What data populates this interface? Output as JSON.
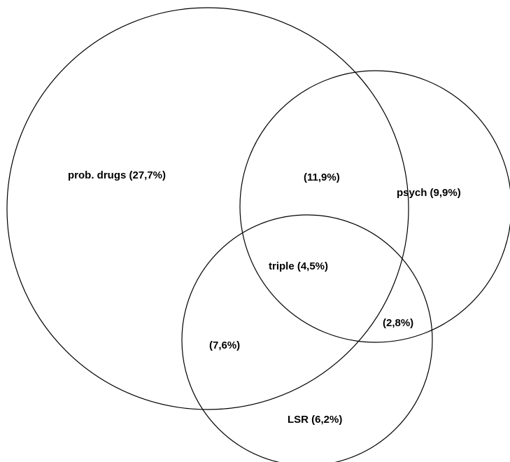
{
  "diagram": {
    "type": "venn",
    "sets": [
      {
        "id": "prob_drugs",
        "label": "prob. drugs (27,7%)"
      },
      {
        "id": "psych",
        "label": "psych (9,9%)"
      },
      {
        "id": "lsr",
        "label": "LSR (6,2%)"
      }
    ],
    "overlaps": {
      "prob_drugs_psych": "(11,9%)",
      "prob_drugs_lsr": "(7,6%)",
      "psych_lsr": "(2,8%)",
      "triple": "triple (4,5%)"
    },
    "stroke_color": "#000000",
    "background_color": "#ffffff"
  }
}
